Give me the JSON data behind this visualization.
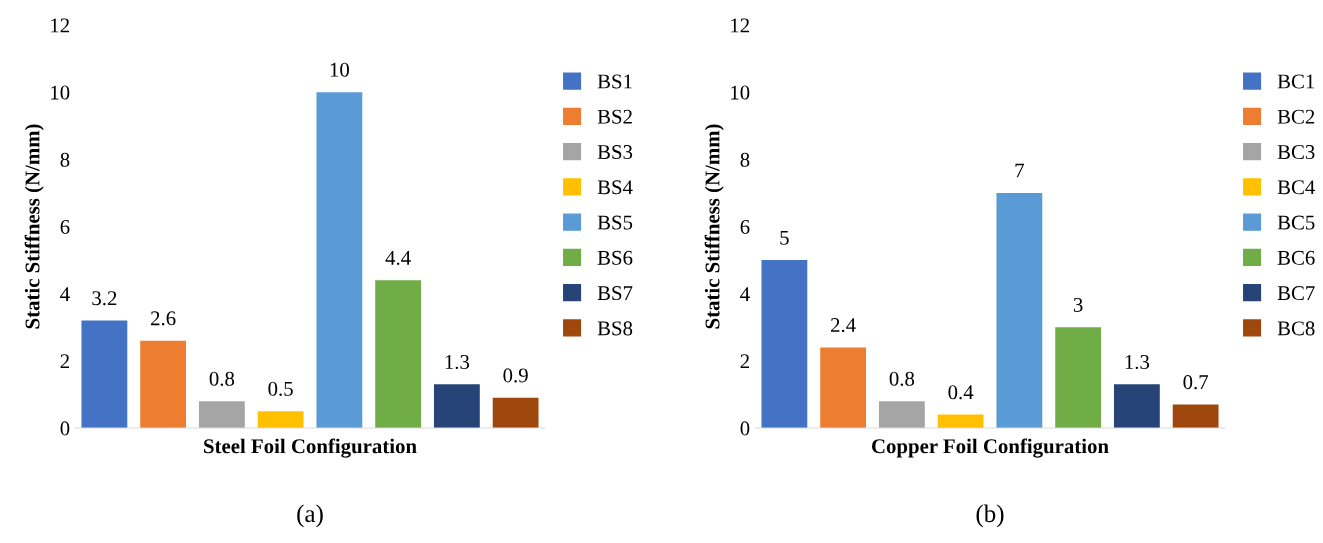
{
  "chart_data": [
    {
      "type": "bar",
      "categories": [
        null
      ],
      "xlabel": "Steel Foil Configuration",
      "ylabel": "Static Stiffness (N/mm)",
      "ylim": [
        0,
        12
      ],
      "yticks": [
        0,
        2,
        4,
        6,
        8,
        10,
        12
      ],
      "data_labels": true,
      "legend": "right",
      "grid": false,
      "annotations": [
        "(a)"
      ],
      "series": [
        {
          "name": "BS1",
          "color": "#4472c4",
          "values": [
            3.2
          ]
        },
        {
          "name": "BS2",
          "color": "#ed7d31",
          "values": [
            2.6
          ]
        },
        {
          "name": "BS3",
          "color": "#a5a5a5",
          "values": [
            0.8
          ]
        },
        {
          "name": "BS4",
          "color": "#ffc000",
          "values": [
            0.5
          ]
        },
        {
          "name": "BS5",
          "color": "#5b9bd5",
          "values": [
            10
          ]
        },
        {
          "name": "BS6",
          "color": "#70ad47",
          "values": [
            4.4
          ]
        },
        {
          "name": "BS7",
          "color": "#264478",
          "values": [
            1.3
          ]
        },
        {
          "name": "BS8",
          "color": "#9e480e",
          "values": [
            0.9
          ]
        }
      ]
    },
    {
      "type": "bar",
      "categories": [
        null
      ],
      "xlabel": "Copper Foil Configuration",
      "ylabel": "Static Stiffness (N/mm)",
      "ylim": [
        0,
        12
      ],
      "yticks": [
        0,
        2,
        4,
        6,
        8,
        10,
        12
      ],
      "data_labels": true,
      "legend": "right",
      "grid": false,
      "annotations": [
        "(b)"
      ],
      "series": [
        {
          "name": "BC1",
          "color": "#4472c4",
          "values": [
            5
          ]
        },
        {
          "name": "BC2",
          "color": "#ed7d31",
          "values": [
            2.4
          ]
        },
        {
          "name": "BC3",
          "color": "#a5a5a5",
          "values": [
            0.8
          ]
        },
        {
          "name": "BC4",
          "color": "#ffc000",
          "values": [
            0.4
          ]
        },
        {
          "name": "BC5",
          "color": "#5b9bd5",
          "values": [
            7
          ]
        },
        {
          "name": "BC6",
          "color": "#70ad47",
          "values": [
            3
          ]
        },
        {
          "name": "BC7",
          "color": "#264478",
          "values": [
            1.3
          ]
        },
        {
          "name": "BC8",
          "color": "#9e480e",
          "values": [
            0.7
          ]
        }
      ]
    }
  ]
}
